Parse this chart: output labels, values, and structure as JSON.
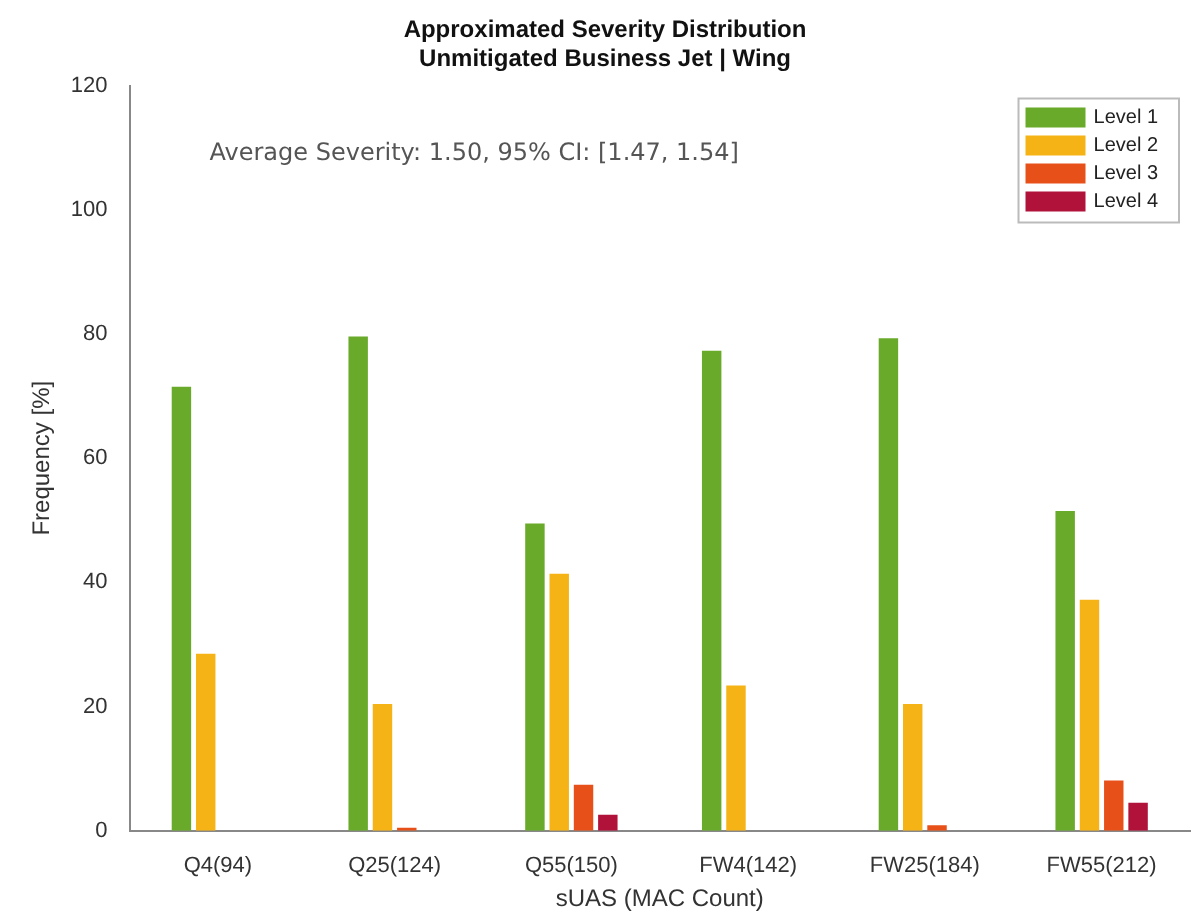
{
  "chart_data": {
    "type": "bar",
    "title": "Approximated Severity Distribution",
    "subtitle": "Unmitigated Business Jet | Wing",
    "xlabel": "sUAS (MAC Count)",
    "ylabel": "Frequency [%]",
    "categories": [
      "Q4(94)",
      "Q25(124)",
      "Q55(150)",
      "FW4(142)",
      "FW25(184)",
      "FW55(212)"
    ],
    "series": [
      {
        "name": "Level 1",
        "color": "#6aaa2a",
        "values": [
          71.5,
          79.6,
          49.5,
          77.3,
          79.3,
          51.5
        ]
      },
      {
        "name": "Level 2",
        "color": "#f5b316",
        "values": [
          28.5,
          20.4,
          41.4,
          23.4,
          20.4,
          37.2
        ]
      },
      {
        "name": "Level 3",
        "color": "#e8501a",
        "values": [
          0,
          0.5,
          7.4,
          0,
          0.9,
          8.1
        ]
      },
      {
        "name": "Level 4",
        "color": "#b0123a",
        "values": [
          0,
          0,
          2.6,
          0,
          0,
          4.5
        ]
      }
    ],
    "ylim": [
      0,
      120
    ],
    "yticks": [
      0,
      20,
      40,
      60,
      80,
      100,
      120
    ],
    "grid": false,
    "legend": "top right",
    "annotations": [
      "Average Severity: 1.50, 95% CI: [1.47, 1.54]"
    ]
  }
}
